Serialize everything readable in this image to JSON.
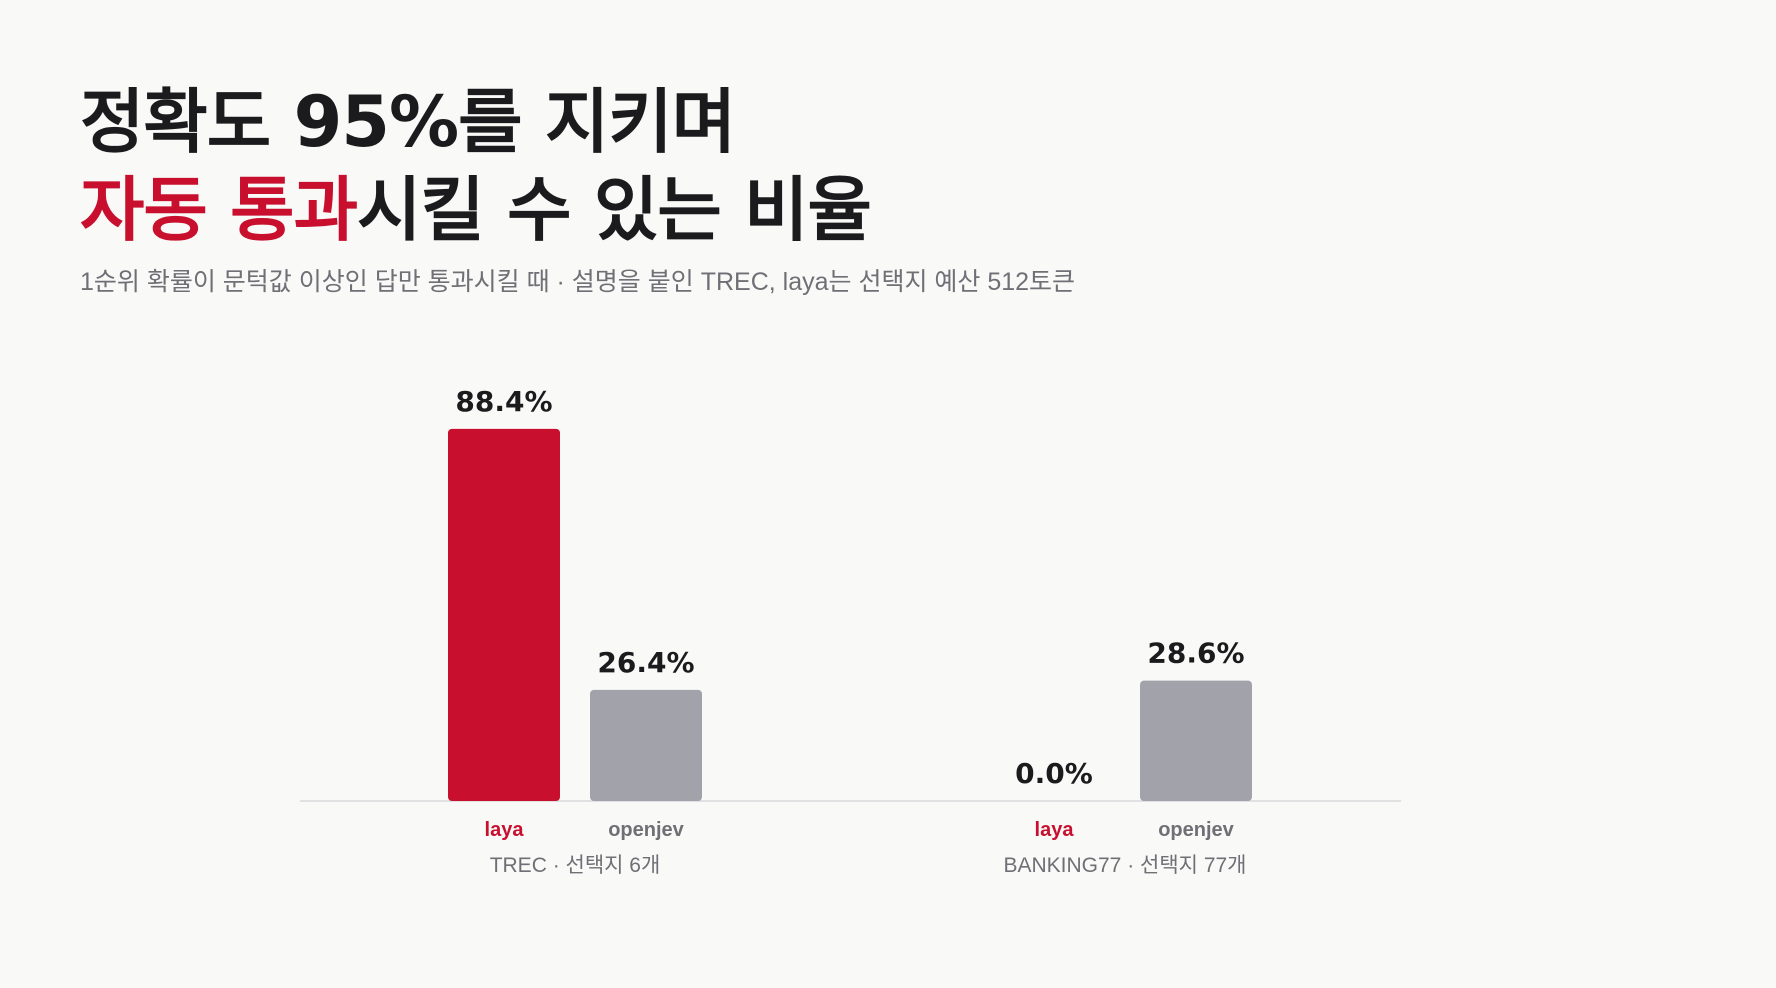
{
  "title": {
    "line1": "정확도 95%를 지키며",
    "line2_accent": "자동 통과",
    "line2_rest": "시킬 수 있는 비율"
  },
  "subtitle": "1순위 확률이 문턱값 이상인 답만 통과시킬 때 · 설명을 붙인 TREC, laya는 선택지 예산 512토큰",
  "colors": {
    "accent": "#c8102e",
    "gray_bar": "#a2a2aa",
    "text_dark": "#1b1b1d",
    "text_muted": "#6f6f75",
    "axis": "#d9d9dc"
  },
  "chart_data": {
    "type": "bar",
    "categories": [
      "TREC · 선택지 6개",
      "BANKING77 · 선택지 77개"
    ],
    "series": [
      {
        "name": "laya",
        "values": [
          88.4,
          0.0
        ],
        "labels": [
          "88.4%",
          "0.0%"
        ],
        "color": "#c8102e"
      },
      {
        "name": "openjev",
        "values": [
          26.4,
          28.6
        ],
        "labels": [
          "26.4%",
          "28.6%"
        ],
        "color": "#a2a2aa"
      }
    ],
    "ylim": [
      0,
      100
    ],
    "grid": false,
    "legend": "none"
  }
}
